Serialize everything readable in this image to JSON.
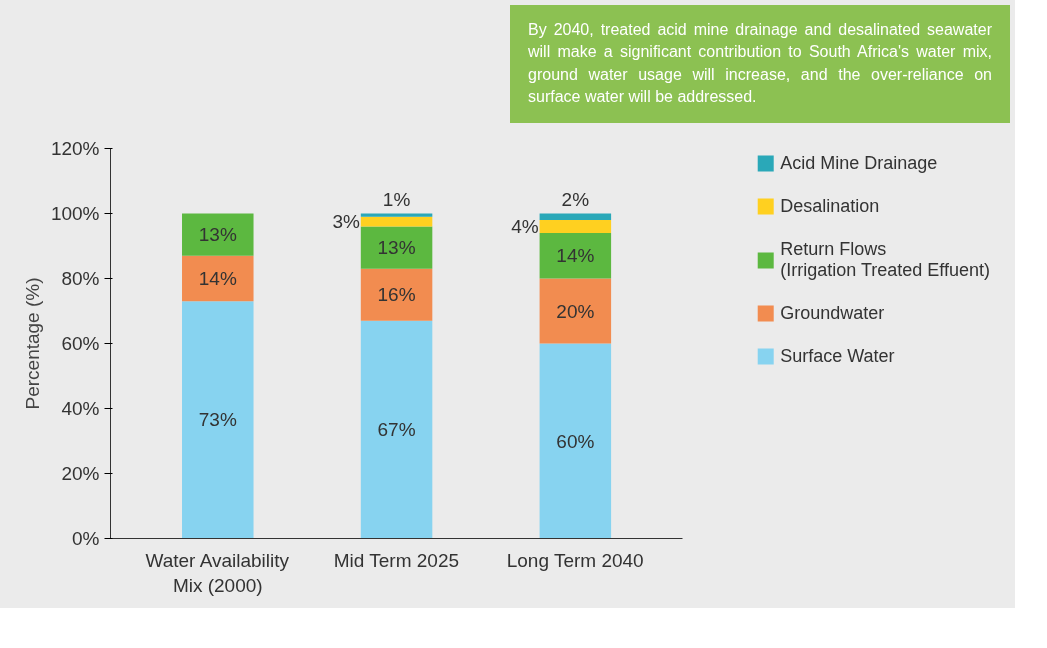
{
  "chart_data": {
    "type": "bar",
    "stacked": true,
    "ylabel": "Percentage (%)",
    "categories": [
      "Water Availability Mix (2000)",
      "Mid Term 2025",
      "Long Term 2040"
    ],
    "series": [
      {
        "name": "Surface Water",
        "color": "#87d3f0",
        "values": [
          73,
          67,
          60
        ],
        "value_labels": [
          "73%",
          "67%",
          "60%"
        ]
      },
      {
        "name": "Groundwater",
        "color": "#f28c50",
        "values": [
          14,
          16,
          20
        ],
        "value_labels": [
          "14%",
          "16%",
          "20%"
        ]
      },
      {
        "name": "Return Flows\n(Irrigation Treated Effuent)",
        "color": "#5cb840",
        "values": [
          13,
          13,
          14
        ],
        "value_labels": [
          "13%",
          "13%",
          "14%"
        ]
      },
      {
        "name": "Desalination",
        "color": "#ffd020",
        "values": [
          null,
          3,
          4
        ],
        "value_labels": [
          null,
          "3%",
          "4%"
        ]
      },
      {
        "name": "Acid Mine Drainage",
        "color": "#2aa8b8",
        "values": [
          null,
          1,
          2
        ],
        "value_labels": [
          null,
          "1%",
          "2%"
        ]
      }
    ],
    "ylim": [
      0,
      120
    ],
    "yticks": [
      {
        "value": 0,
        "label": "0%"
      },
      {
        "value": 20,
        "label": "20%"
      },
      {
        "value": 40,
        "label": "40%"
      },
      {
        "value": 60,
        "label": "60%"
      },
      {
        "value": 80,
        "label": "80%"
      },
      {
        "value": 100,
        "label": "100%"
      },
      {
        "value": 120,
        "label": "120%"
      }
    ],
    "legend": "right",
    "grid": false,
    "annotations": [
      "By 2040, treated acid mine drainage and desalinated seawater will make a significant contribution to South Africa's water mix, ground water usage will increase, and the over-reliance on surface water will be addressed."
    ]
  }
}
